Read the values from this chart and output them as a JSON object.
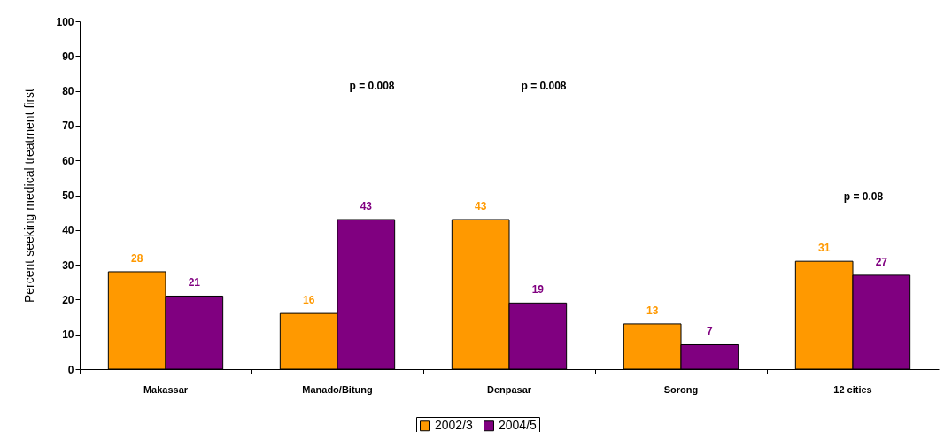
{
  "chart_data": {
    "type": "bar",
    "ylabel": "Percent seeking medical treatment first",
    "categories": [
      "Makassar",
      "Manado/Bitung",
      "Denpasar",
      "Sorong",
      "12 cities"
    ],
    "series": [
      {
        "name": "2002/3",
        "color": "#ff9900",
        "values": [
          28,
          16,
          43,
          13,
          31
        ]
      },
      {
        "name": "2004/5",
        "color": "#800080",
        "values": [
          21,
          43,
          19,
          7,
          27
        ]
      }
    ],
    "ylim": [
      0,
      100
    ],
    "yticks": [
      0,
      10,
      20,
      30,
      40,
      50,
      60,
      70,
      80,
      90,
      100
    ],
    "data_labels": true,
    "grid": false,
    "legend": "bottom",
    "annotations": [
      "p = 0.008",
      "p = 0.008",
      "p = 0.08"
    ]
  }
}
